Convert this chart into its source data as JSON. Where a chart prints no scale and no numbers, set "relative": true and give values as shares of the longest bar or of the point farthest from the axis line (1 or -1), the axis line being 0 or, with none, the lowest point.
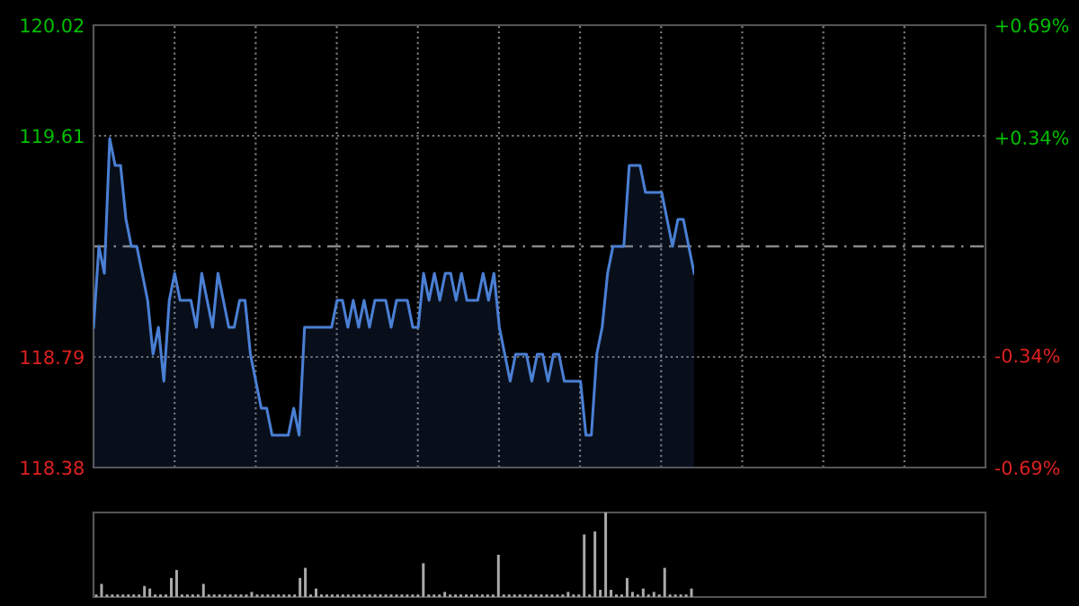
{
  "chart_data": [
    {
      "type": "area",
      "color": "#4a7fd4",
      "line_style": "solid",
      "marker": "none",
      "categories": [
        null,
        null,
        null,
        null,
        null,
        null,
        null,
        null,
        null,
        null,
        null,
        null,
        null,
        null,
        null,
        null,
        null,
        null,
        null,
        null,
        null,
        null,
        null,
        null,
        null,
        null,
        null,
        null,
        null,
        null,
        null,
        null,
        null,
        null,
        null,
        null,
        null,
        null,
        null,
        null,
        null,
        null,
        null,
        null,
        null,
        null,
        null,
        null,
        null,
        null,
        null,
        null,
        null,
        null,
        null,
        null,
        null,
        null,
        null,
        null,
        null,
        null,
        null,
        null,
        null,
        null,
        null,
        null,
        null,
        null,
        null,
        null,
        null,
        null,
        null,
        null,
        null,
        null,
        null,
        null,
        null,
        null,
        null,
        null,
        null,
        null,
        null,
        null,
        null,
        null,
        null,
        null,
        null,
        null,
        null,
        null,
        null,
        null,
        null,
        null,
        null,
        null,
        null,
        null,
        null,
        null,
        null,
        null,
        null,
        null,
        null,
        null
      ],
      "values": [
        118.9,
        119.2,
        119.1,
        119.6,
        119.5,
        119.5,
        119.3,
        119.2,
        119.2,
        119.1,
        119.0,
        118.8,
        118.9,
        118.7,
        119.0,
        119.1,
        119.0,
        119.0,
        119.0,
        118.9,
        119.1,
        119.0,
        118.9,
        119.1,
        119.0,
        118.9,
        118.9,
        119.0,
        119.0,
        118.8,
        118.7,
        118.6,
        118.6,
        118.5,
        118.5,
        118.5,
        118.5,
        118.6,
        118.5,
        118.9,
        118.9,
        118.9,
        118.9,
        118.9,
        118.9,
        119.0,
        119.0,
        118.9,
        119.0,
        118.9,
        119.0,
        118.9,
        119.0,
        119.0,
        119.0,
        118.9,
        119.0,
        119.0,
        119.0,
        118.9,
        118.9,
        119.1,
        119.0,
        119.1,
        119.0,
        119.1,
        119.1,
        119.0,
        119.1,
        119.0,
        119.0,
        119.0,
        119.1,
        119.0,
        119.1,
        118.9,
        118.8,
        118.7,
        118.8,
        118.8,
        118.8,
        118.7,
        118.8,
        118.8,
        118.7,
        118.8,
        118.8,
        118.7,
        118.7,
        118.7,
        118.7,
        118.5,
        118.5,
        118.8,
        118.9,
        119.1,
        119.2,
        119.2,
        119.2,
        119.5,
        119.5,
        119.5,
        119.4,
        119.4,
        119.4,
        119.4,
        119.3,
        119.2,
        119.3,
        119.3,
        119.2,
        119.1
      ],
      "ylim": [
        118.38,
        120.02
      ],
      "yticks": [
        118.38,
        118.79,
        119.61,
        120.02
      ],
      "y2lim": [
        -0.69,
        0.69
      ],
      "y2ticks": [
        {
          "value": -0.69,
          "label": "-0.69%"
        },
        {
          "value": -0.34,
          "label": "-0.34%"
        },
        {
          "value": 0.34,
          "label": "+0.34%"
        },
        {
          "value": 0.69,
          "label": "+0.69%"
        }
      ],
      "ref_lines": [
        {
          "axis": "y",
          "value": 119.2,
          "line_style": "dashed",
          "color": "#888888"
        }
      ],
      "grid": true,
      "tick_labels": "y"
    },
    {
      "type": "bar",
      "relative": true,
      "color": "#aaaaaa",
      "grid": false,
      "tick_labels": false,
      "categories": [
        null,
        null,
        null,
        null,
        null,
        null,
        null,
        null,
        null,
        null,
        null,
        null,
        null,
        null,
        null,
        null,
        null,
        null,
        null,
        null,
        null,
        null,
        null,
        null,
        null,
        null,
        null,
        null,
        null,
        null,
        null,
        null,
        null,
        null,
        null,
        null,
        null,
        null,
        null,
        null,
        null,
        null,
        null,
        null,
        null,
        null,
        null,
        null,
        null,
        null,
        null,
        null,
        null,
        null,
        null,
        null,
        null,
        null,
        null,
        null,
        null,
        null,
        null,
        null,
        null,
        null,
        null,
        null,
        null,
        null,
        null,
        null,
        null,
        null,
        null,
        null,
        null,
        null,
        null,
        null,
        null,
        null,
        null,
        null,
        null,
        null,
        null,
        null,
        null,
        null,
        null,
        null,
        null,
        null,
        null,
        null,
        null,
        null,
        null,
        null,
        null,
        null,
        null,
        null,
        null,
        null,
        null,
        null,
        null,
        null,
        null,
        null
      ],
      "values": [
        0.03,
        0.155,
        0.03,
        0.03,
        0.03,
        0.03,
        0.03,
        0.03,
        0.03,
        0.13,
        0.1,
        0.03,
        0.03,
        0.03,
        0.225,
        0.32,
        0.03,
        0.03,
        0.03,
        0.03,
        0.155,
        0.03,
        0.03,
        0.03,
        0.03,
        0.03,
        0.03,
        0.03,
        0.03,
        0.06,
        0.03,
        0.03,
        0.03,
        0.03,
        0.03,
        0.03,
        0.03,
        0.03,
        0.225,
        0.345,
        0.03,
        0.1,
        0.03,
        0.03,
        0.03,
        0.03,
        0.03,
        0.03,
        0.03,
        0.03,
        0.03,
        0.03,
        0.03,
        0.03,
        0.03,
        0.03,
        0.03,
        0.03,
        0.03,
        0.03,
        0.03,
        0.4,
        0.03,
        0.03,
        0.03,
        0.06,
        0.03,
        0.03,
        0.03,
        0.03,
        0.03,
        0.03,
        0.03,
        0.03,
        0.03,
        0.5,
        0.03,
        0.03,
        0.03,
        0.03,
        0.03,
        0.03,
        0.03,
        0.03,
        0.03,
        0.03,
        0.03,
        0.03,
        0.06,
        0.03,
        0.03,
        0.74,
        0.03,
        0.775,
        0.085,
        1,
        0.085,
        0.03,
        0.03,
        0.225,
        0.06,
        0.03,
        0.1,
        0.03,
        0.06,
        0.03,
        0.345,
        0.03,
        0.03,
        0.03,
        0.03,
        0.1
      ]
    }
  ]
}
